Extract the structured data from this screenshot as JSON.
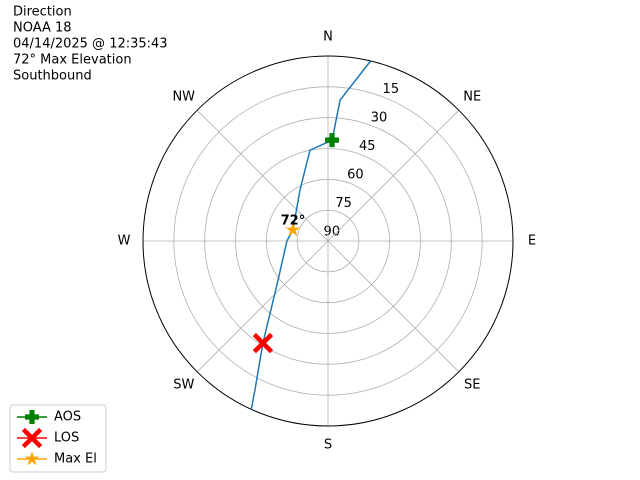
{
  "chart_data": {
    "type": "polar",
    "title_lines": [
      "Direction",
      "NOAA 18",
      "04/14/2025 @ 12:35:43",
      "72° Max Elevation",
      "Southbound"
    ],
    "xticks": [
      {
        "value": 0,
        "label": "N"
      },
      {
        "value": 45,
        "label": "NE"
      },
      {
        "value": 90,
        "label": "E"
      },
      {
        "value": 135,
        "label": "SE"
      },
      {
        "value": 180,
        "label": "S"
      },
      {
        "value": 225,
        "label": "SW"
      },
      {
        "value": 270,
        "label": "W"
      },
      {
        "value": 315,
        "label": "NW"
      }
    ],
    "rlim": [
      90,
      0
    ],
    "rticks": [
      15,
      30,
      45,
      60,
      75,
      90
    ],
    "grid": true,
    "track": {
      "color": "#1f77b4",
      "x": [
        13.3,
        4.9,
        2.3,
        348.8,
        331.2,
        287.5,
        270,
        232,
        212.5,
        206.1,
        204.5
      ],
      "values": [
        0,
        21.2,
        40.9,
        44.9,
        61.7,
        72.1,
        70,
        59.2,
        31.1,
        9.2,
        0
      ]
    },
    "series": [
      {
        "name": "AOS",
        "color": "#008000",
        "marker": "plus",
        "x": [
          2.3
        ],
        "values": [
          40.9
        ]
      },
      {
        "name": "LOS",
        "color": "#ff0000",
        "marker": "x",
        "x": [
          212.5
        ],
        "values": [
          31.1
        ]
      },
      {
        "name": "Max El",
        "color": "#ffa500",
        "marker": "star",
        "x": [
          287.5
        ],
        "values": [
          72.1
        ]
      }
    ],
    "annotation": {
      "text": "72°",
      "x": 287.5,
      "y": 72.1
    },
    "legend": "lower left"
  }
}
